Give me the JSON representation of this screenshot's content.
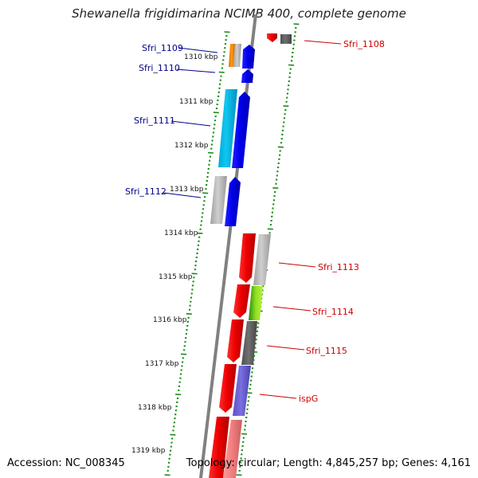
{
  "title": "Shewanella frigidimarina NCIMB 400, complete genome",
  "footer": {
    "accession": "Accession: NC_008345",
    "topology": "Topology: circular; Length: 4,845,257 bp; Genes: 4,161"
  },
  "kbp_labels": [
    "1310 kbp",
    "1311 kbp",
    "1312 kbp",
    "1313 kbp",
    "1314 kbp",
    "1315 kbp",
    "1316 kbp",
    "1317 kbp",
    "1318 kbp",
    "1319 kbp"
  ],
  "gene_labels": {
    "sfri_1108": "Sfri_1108",
    "sfri_1109": "Sfri_1109",
    "sfri_1110": "Sfri_1110",
    "sfri_1111": "Sfri_1111",
    "sfri_1112": "Sfri_1112",
    "sfri_1113": "Sfri_1113",
    "sfri_1114": "Sfri_1114",
    "sfri_1115": "Sfri_1115",
    "ispg": "ispG"
  },
  "colors": {
    "backbone": "#808080",
    "tick": "#1a8c1a",
    "left_label": "#00008b",
    "right_label": "#cc0000",
    "forward_gene": "#0000ee",
    "reverse_gene": "#ee0000"
  }
}
